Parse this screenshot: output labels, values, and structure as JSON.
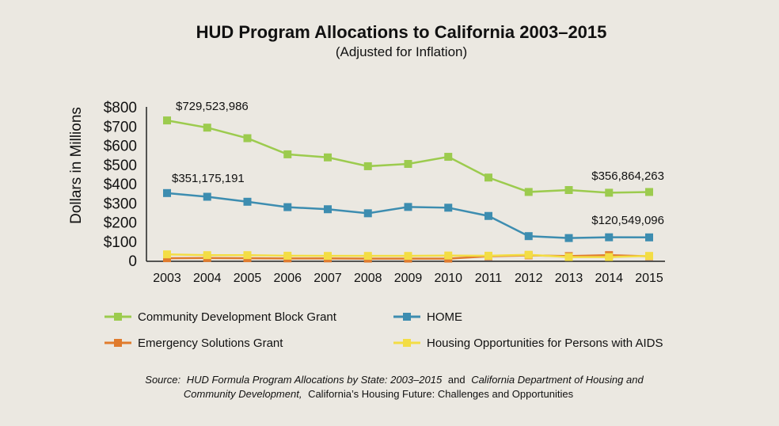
{
  "chart_data": {
    "type": "line",
    "title": "HUD Program Allocations to California 2003–2015",
    "subtitle": "(Adjusted for Inflation)",
    "ylabel": "Dollars in Millions",
    "xlabel": "",
    "x": [
      "2003",
      "2004",
      "2005",
      "2006",
      "2007",
      "2008",
      "2009",
      "2010",
      "2011",
      "2012",
      "2013",
      "2014",
      "2015"
    ],
    "ylim": [
      0,
      800
    ],
    "yticks": [
      0,
      100,
      200,
      300,
      400,
      500,
      600,
      700,
      800
    ],
    "ytick_labels": [
      "0",
      "$100",
      "$200",
      "$300",
      "$400",
      "$500",
      "$600",
      "$700",
      "$800"
    ],
    "grid": false,
    "legend_placement": "bottom",
    "series": [
      {
        "name": "Community Development Block Grant",
        "color": "#9ccb4e",
        "values": [
          729.5,
          692,
          637,
          553,
          537,
          491,
          503,
          540,
          432,
          357,
          367,
          353,
          356.9
        ]
      },
      {
        "name": "HOME",
        "color": "#3d8db0",
        "values": [
          351.2,
          332,
          306,
          278,
          267,
          246,
          279,
          275,
          232,
          127,
          117,
          121,
          120.5
        ]
      },
      {
        "name": "Emergency Solutions Grant",
        "color": "#e07b2d",
        "values": [
          12,
          13,
          12,
          11,
          11,
          10,
          10,
          10,
          22,
          27,
          23,
          28,
          22
        ]
      },
      {
        "name": "Housing Opportunities for Persons with AIDS",
        "color": "#f3dd45",
        "values": [
          32,
          28,
          28,
          25,
          24,
          24,
          24,
          26,
          25,
          30,
          18,
          18,
          24
        ]
      }
    ],
    "annotations": [
      {
        "text": "$729,523,986",
        "x": "2003",
        "series": 0
      },
      {
        "text": "$351,175,191",
        "x": "2003",
        "series": 1
      },
      {
        "text": "$356,864,263",
        "x": "2015",
        "series": 0
      },
      {
        "text": "$120,549,096",
        "x": "2015",
        "series": 1
      }
    ]
  },
  "source": {
    "label": "Source:",
    "part1": "HUD Formula Program Allocations by State: 2003–2015",
    "and1": "and",
    "part2": "California Department of Housing and",
    "part3": "Community Development,",
    "part4": "California’s Housing Future: Challenges and Opportunities"
  }
}
